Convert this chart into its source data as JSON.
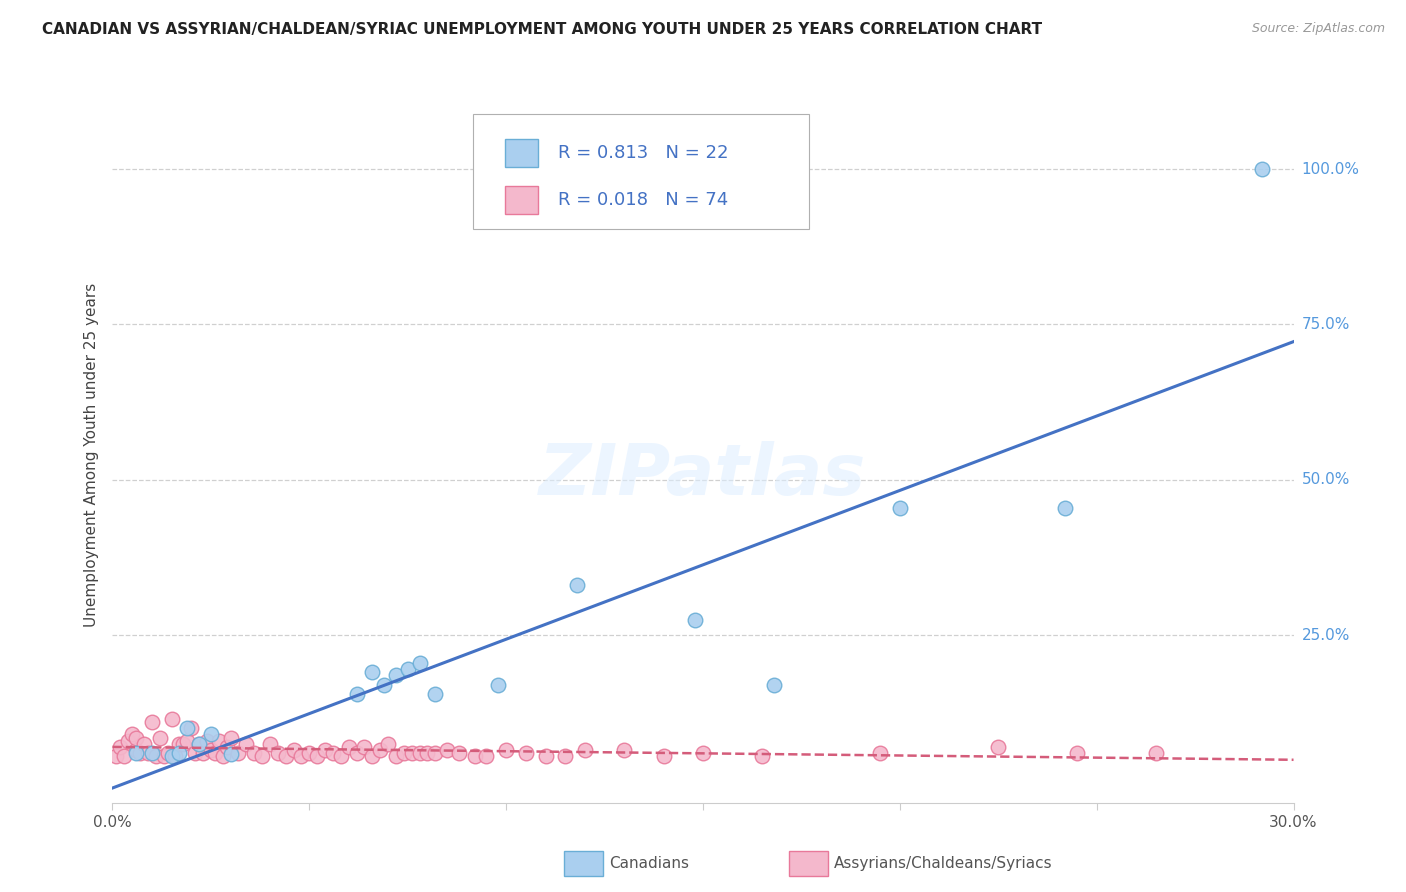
{
  "title": "CANADIAN VS ASSYRIAN/CHALDEAN/SYRIAC UNEMPLOYMENT AMONG YOUTH UNDER 25 YEARS CORRELATION CHART",
  "source": "Source: ZipAtlas.com",
  "ylabel": "Unemployment Among Youth under 25 years",
  "xlim": [
    0.0,
    0.3
  ],
  "ylim": [
    -0.02,
    1.1
  ],
  "xticks": [
    0.0,
    0.05,
    0.1,
    0.15,
    0.2,
    0.25,
    0.3
  ],
  "xticklabels": [
    "0.0%",
    "",
    "",
    "",
    "",
    "",
    "30.0%"
  ],
  "yticks_right": [
    0.0,
    0.25,
    0.5,
    0.75,
    1.0
  ],
  "yticklabels_right": [
    "",
    "25.0%",
    "50.0%",
    "75.0%",
    "100.0%"
  ],
  "legend_r_canadian": "0.813",
  "legend_n_canadian": "22",
  "legend_r_assyrian": "0.018",
  "legend_n_assyrian": "74",
  "canadian_color": "#aacfef",
  "canadian_edge_color": "#6aaed6",
  "assyrian_color": "#f4b8cc",
  "assyrian_edge_color": "#e8799a",
  "canadian_line_color": "#4472c4",
  "assyrian_line_color": "#d45c7a",
  "background_color": "#ffffff",
  "watermark": "ZIPatlas",
  "grid_color": "#d0d0d0",
  "can_x": [
    0.006,
    0.01,
    0.015,
    0.017,
    0.019,
    0.022,
    0.025,
    0.03,
    0.062,
    0.066,
    0.069,
    0.072,
    0.075,
    0.078,
    0.082,
    0.098,
    0.118,
    0.148,
    0.168,
    0.2,
    0.242,
    0.292
  ],
  "can_y": [
    0.06,
    0.06,
    0.055,
    0.06,
    0.1,
    0.075,
    0.09,
    0.058,
    0.155,
    0.19,
    0.17,
    0.185,
    0.195,
    0.205,
    0.155,
    0.17,
    0.33,
    0.275,
    0.17,
    0.455,
    0.455,
    1.0
  ],
  "asy_x": [
    0.001,
    0.002,
    0.003,
    0.004,
    0.005,
    0.006,
    0.006,
    0.007,
    0.008,
    0.009,
    0.01,
    0.011,
    0.012,
    0.013,
    0.014,
    0.015,
    0.016,
    0.017,
    0.018,
    0.019,
    0.02,
    0.021,
    0.022,
    0.023,
    0.024,
    0.025,
    0.026,
    0.027,
    0.028,
    0.029,
    0.03,
    0.032,
    0.034,
    0.036,
    0.038,
    0.04,
    0.042,
    0.044,
    0.046,
    0.048,
    0.05,
    0.052,
    0.054,
    0.056,
    0.058,
    0.06,
    0.062,
    0.064,
    0.066,
    0.068,
    0.07,
    0.072,
    0.074,
    0.076,
    0.078,
    0.08,
    0.082,
    0.085,
    0.088,
    0.092,
    0.095,
    0.1,
    0.105,
    0.11,
    0.115,
    0.12,
    0.13,
    0.14,
    0.15,
    0.165,
    0.195,
    0.225,
    0.245,
    0.265
  ],
  "asy_y": [
    0.055,
    0.07,
    0.055,
    0.08,
    0.09,
    0.065,
    0.085,
    0.06,
    0.075,
    0.06,
    0.11,
    0.055,
    0.085,
    0.055,
    0.06,
    0.115,
    0.055,
    0.075,
    0.075,
    0.08,
    0.1,
    0.06,
    0.075,
    0.06,
    0.08,
    0.065,
    0.06,
    0.08,
    0.055,
    0.07,
    0.085,
    0.06,
    0.075,
    0.06,
    0.055,
    0.075,
    0.06,
    0.055,
    0.065,
    0.055,
    0.06,
    0.055,
    0.065,
    0.06,
    0.055,
    0.07,
    0.06,
    0.07,
    0.055,
    0.065,
    0.075,
    0.055,
    0.06,
    0.06,
    0.06,
    0.06,
    0.06,
    0.065,
    0.06,
    0.055,
    0.055,
    0.065,
    0.06,
    0.055,
    0.055,
    0.065,
    0.065,
    0.055,
    0.06,
    0.055,
    0.06,
    0.07,
    0.06,
    0.06
  ]
}
